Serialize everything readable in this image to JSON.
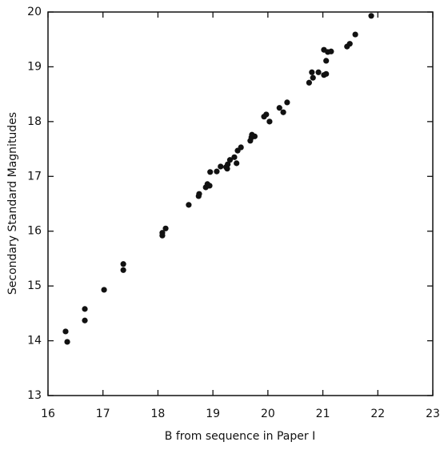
{
  "chart_data": {
    "type": "scatter",
    "x_label": "B from sequence in Paper I",
    "y_label": "Secondary Standard Magnitudes",
    "x": [
      16.32,
      16.35,
      16.67,
      16.67,
      17.02,
      17.37,
      17.37,
      18.08,
      18.08,
      18.14,
      18.56,
      18.74,
      18.75,
      18.87,
      18.9,
      18.94,
      18.95,
      19.07,
      19.14,
      19.24,
      19.27,
      19.31,
      19.39,
      19.26,
      19.43,
      19.45,
      19.51,
      19.68,
      19.7,
      19.76,
      19.71,
      19.93,
      19.97,
      20.03,
      20.21,
      20.28,
      20.35,
      20.75,
      20.8,
      20.82,
      20.92,
      21.02,
      21.06,
      21.02,
      21.09,
      21.15,
      21.06,
      21.44,
      21.49,
      21.59,
      21.88
    ],
    "values": [
      14.17,
      13.98,
      14.58,
      14.37,
      14.93,
      15.4,
      15.29,
      15.97,
      15.92,
      16.05,
      16.48,
      16.64,
      16.68,
      16.8,
      16.86,
      16.83,
      17.08,
      17.09,
      17.18,
      17.17,
      17.22,
      17.3,
      17.35,
      17.14,
      17.24,
      17.47,
      17.53,
      17.65,
      17.71,
      17.73,
      17.76,
      18.09,
      18.13,
      18.0,
      18.25,
      18.17,
      18.35,
      18.71,
      18.9,
      18.8,
      18.9,
      18.85,
      18.87,
      19.31,
      19.27,
      19.28,
      19.11,
      19.37,
      19.42,
      19.59,
      19.93
    ],
    "color": "#111111",
    "xlim": [
      16,
      23
    ],
    "xticks": [
      16,
      17,
      18,
      19,
      20,
      21,
      22,
      23
    ],
    "ylim": [
      13,
      20
    ],
    "yticks": [
      13,
      14,
      15,
      16,
      17,
      18,
      19,
      20
    ]
  }
}
